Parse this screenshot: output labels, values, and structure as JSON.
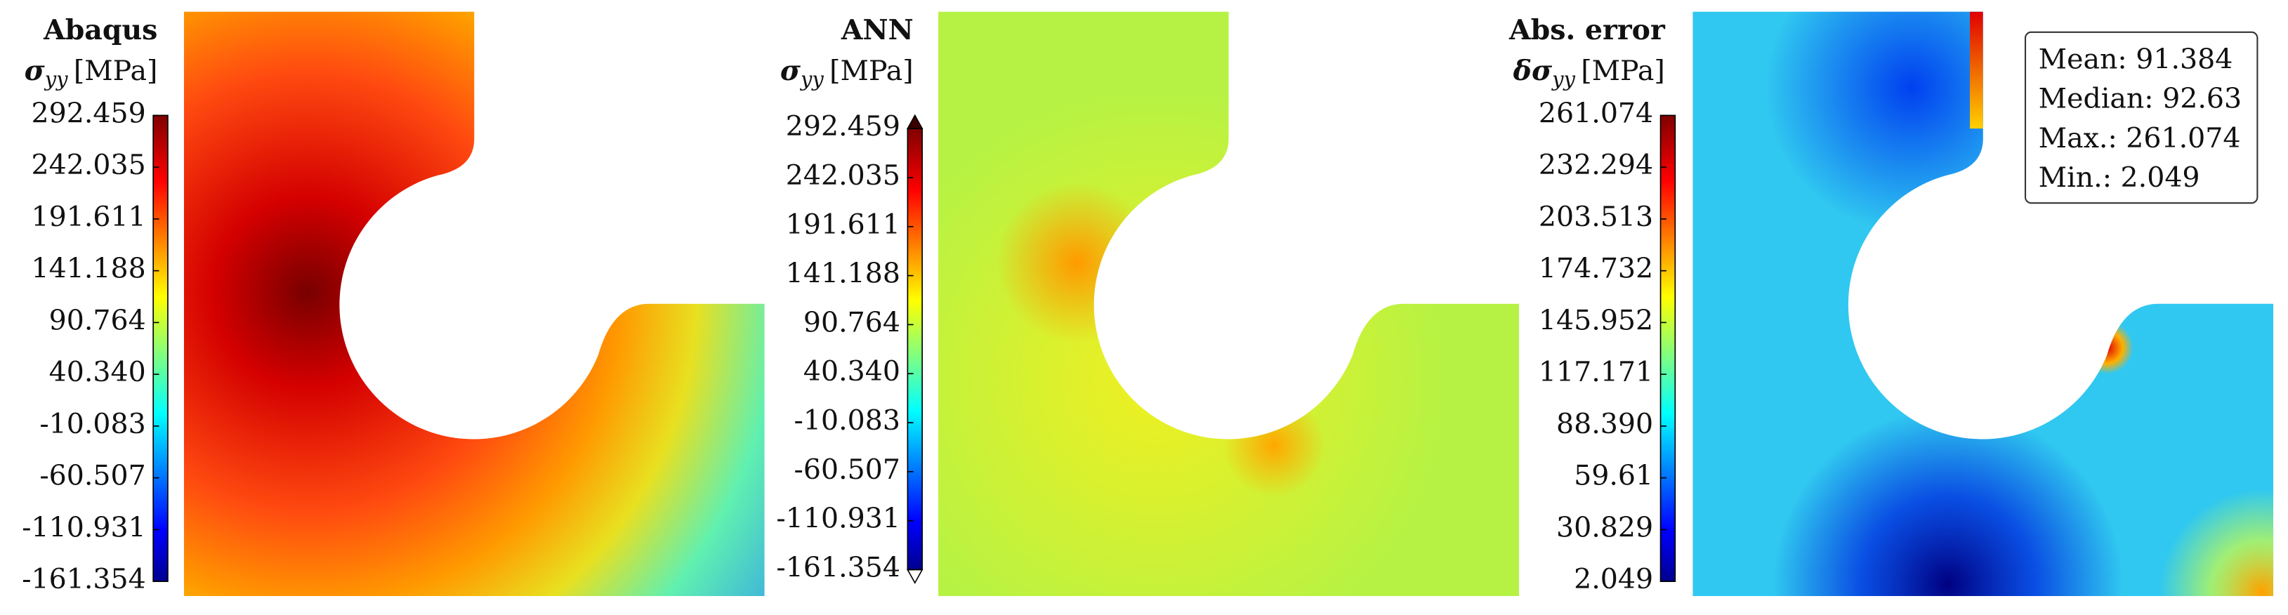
{
  "chart_data": [
    {
      "type": "contour",
      "title": "Abaqus",
      "quantity": {
        "symbol": "σ",
        "subscript": "yy",
        "unit": "[MPa]"
      },
      "clim": [
        -161.354,
        292.459
      ],
      "cticks": [
        292.459,
        242.035,
        191.611,
        141.188,
        90.764,
        {
          "value": 40.34,
          "label": "40.340"
        },
        -10.083,
        -60.507,
        -110.931,
        -161.354
      ]
    },
    {
      "type": "contour",
      "title": "ANN",
      "quantity": {
        "symbol": "σ",
        "subscript": "yy",
        "unit": "[MPa]"
      },
      "clim": [
        -161.354,
        292.459
      ],
      "cticks": [
        292.459,
        242.035,
        191.611,
        141.188,
        90.764,
        {
          "value": 40.34,
          "label": "40.340"
        },
        -10.083,
        -60.507,
        -110.931,
        -161.354
      ]
    },
    {
      "type": "contour",
      "title": "Abs. error",
      "quantity": {
        "symbol": "δσ",
        "subscript": "yy",
        "unit": "[MPa]"
      },
      "clim": [
        2.049,
        261.074
      ],
      "cticks": [
        261.074,
        232.294,
        203.513,
        174.732,
        145.952,
        117.171,
        {
          "value": 88.39,
          "label": "88.390"
        },
        59.61,
        30.829,
        2.049
      ],
      "annotations": [
        "Mean: 91.384",
        "Median: 92.63",
        "Max.: 261.074",
        "Min.: 2.049"
      ]
    }
  ]
}
